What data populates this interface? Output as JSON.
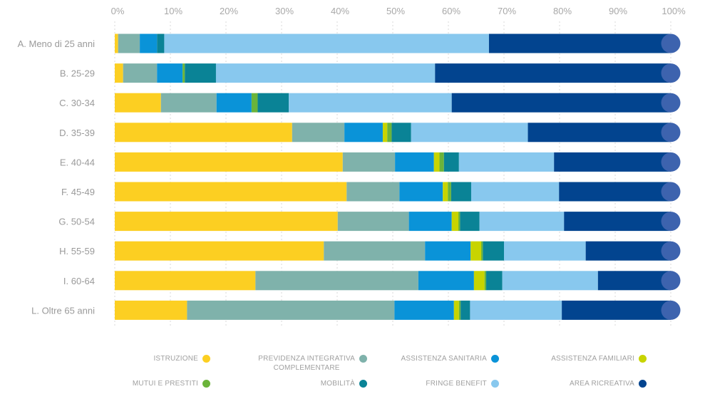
{
  "chart_data": {
    "type": "bar",
    "orientation": "horizontal",
    "stacked": true,
    "percent": true,
    "xlim": [
      0,
      100
    ],
    "x_ticks": [
      "0%",
      "10%",
      "20%",
      "30%",
      "40%",
      "50%",
      "60%",
      "70%",
      "80%",
      "90%",
      "100%"
    ],
    "grid": "vertical-dashed",
    "legend_placement": "bottom",
    "categories": [
      "A. Meno di 25 anni",
      "B. 25-29",
      "C. 30-34",
      "D. 35-39",
      "E. 40-44",
      "F. 45-49",
      "G. 50-54",
      "H. 55-59",
      "I. 60-64",
      "L. Oltre 65 anni"
    ],
    "series": [
      {
        "name": "ISTRUZIONE",
        "color": "#FCCF22",
        "values": [
          0.6,
          1.5,
          8.3,
          31.9,
          41.0,
          41.7,
          40.1,
          37.6,
          25.3,
          13.0
        ]
      },
      {
        "name": "PREVIDENZA INTEGRATIVA COMPLEMENTARE",
        "color": "#7FB2AB",
        "values": [
          3.9,
          6.1,
          10.0,
          9.4,
          9.4,
          9.5,
          12.8,
          18.2,
          29.3,
          37.3
        ]
      },
      {
        "name": "ASSISTENZA SANITARIA",
        "color": "#0A93D8",
        "values": [
          3.1,
          4.6,
          6.3,
          6.9,
          7.0,
          7.8,
          7.7,
          8.2,
          10.0,
          10.7
        ]
      },
      {
        "name": "ASSISTENZA FAMILIARI",
        "color": "#C8D400",
        "values": [
          0.0,
          0.0,
          0.0,
          0.8,
          1.0,
          0.9,
          1.2,
          1.9,
          1.9,
          0.9
        ]
      },
      {
        "name": "MUTUI E PRESTITI",
        "color": "#6BB43A",
        "values": [
          0.0,
          0.4,
          1.1,
          0.8,
          0.8,
          0.6,
          0.3,
          0.3,
          0.3,
          0.3
        ]
      },
      {
        "name": "MOBILITÀ",
        "color": "#0A8396",
        "values": [
          1.3,
          5.6,
          5.6,
          3.5,
          2.7,
          3.6,
          3.5,
          3.8,
          2.9,
          1.7
        ]
      },
      {
        "name": "FRINGE BENEFIT",
        "color": "#88C8EE",
        "values": [
          58.4,
          39.4,
          29.3,
          21.0,
          17.1,
          15.8,
          15.2,
          14.7,
          17.2,
          16.5
        ]
      },
      {
        "name": "AREA RICREATIVA",
        "color": "#02448F",
        "values": [
          32.7,
          42.4,
          39.4,
          25.7,
          21.0,
          20.1,
          19.2,
          15.3,
          13.1,
          19.6
        ]
      }
    ]
  }
}
